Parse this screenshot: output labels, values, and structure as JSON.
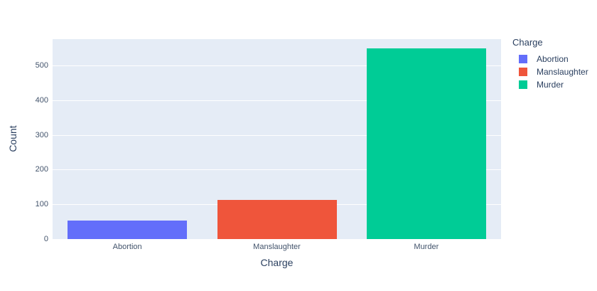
{
  "chart_data": {
    "type": "bar",
    "title": "",
    "categories": [
      "Abortion",
      "Manslaughter",
      "Murder"
    ],
    "values": [
      54,
      112,
      550
    ],
    "bar_colors": [
      "#636EFA",
      "#EF553B",
      "#00CC96"
    ],
    "xlabel": "Charge",
    "ylabel": "Count",
    "yticks": [
      0,
      100,
      200,
      300,
      400,
      500
    ],
    "ylim": [
      0,
      576
    ],
    "grid": true,
    "plot_bgcolor": "#E5ECF6",
    "paper_bgcolor": "#FFFFFF",
    "gridline_color": "#FFFFFF",
    "font_color": "#2A3F5F",
    "legend": {
      "title": "Charge",
      "position": "right",
      "entries": [
        {
          "label": "Abortion",
          "color": "#636EFA"
        },
        {
          "label": "Manslaughter",
          "color": "#EF553B"
        },
        {
          "label": "Murder",
          "color": "#00CC96"
        }
      ]
    }
  }
}
